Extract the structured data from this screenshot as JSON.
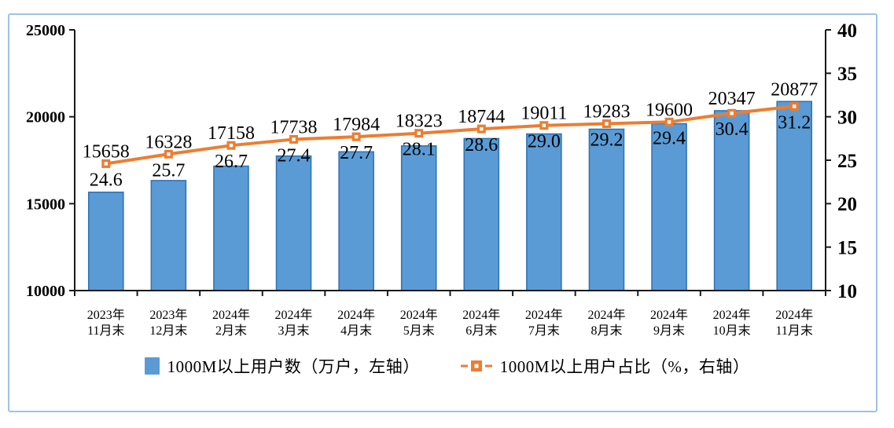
{
  "chart_data": {
    "type": "bar",
    "subtype": "bar-line-combo",
    "title": "",
    "grid": false,
    "legend_position": "bottom",
    "categories": [
      [
        "2023年",
        "11月末"
      ],
      [
        "2023年",
        "12月末"
      ],
      [
        "2024年",
        "2月末"
      ],
      [
        "2024年",
        "3月末"
      ],
      [
        "2024年",
        "4月末"
      ],
      [
        "2024年",
        "5月末"
      ],
      [
        "2024年",
        "6月末"
      ],
      [
        "2024年",
        "7月末"
      ],
      [
        "2024年",
        "8月末"
      ],
      [
        "2024年",
        "9月末"
      ],
      [
        "2024年",
        "10月末"
      ],
      [
        "2024年",
        "11月末"
      ]
    ],
    "series": [
      {
        "name": "1000M以上用户数（万户，左轴）",
        "type": "bar",
        "axis": "left",
        "values": [
          15658,
          16328,
          17158,
          17738,
          17984,
          18323,
          18744,
          19011,
          19283,
          19600,
          20347,
          20877
        ],
        "labels": [
          "15658",
          "16328",
          "17158",
          "17738",
          "17984",
          "18323",
          "18744",
          "19011",
          "19283",
          "19600",
          "20347",
          "20877"
        ]
      },
      {
        "name": "1000M以上用户占比（%，右轴）",
        "type": "line",
        "axis": "right",
        "values": [
          24.6,
          25.7,
          26.7,
          27.4,
          27.7,
          28.1,
          28.6,
          29.0,
          29.2,
          29.4,
          30.4,
          31.2
        ],
        "labels": [
          "24.6",
          "25.7",
          "26.7",
          "27.4",
          "27.7",
          "28.1",
          "28.6",
          "29.0",
          "29.2",
          "29.4",
          "30.4",
          "31.2"
        ]
      }
    ],
    "left_axis": {
      "min": 10000,
      "max": 25000,
      "step": 5000,
      "ticks": [
        "25000",
        "20000",
        "15000",
        "10000"
      ]
    },
    "right_axis": {
      "min": 10,
      "max": 40,
      "step": 5,
      "ticks": [
        "40",
        "35",
        "30",
        "25",
        "20",
        "15",
        "10"
      ]
    }
  },
  "colors": {
    "bar_fill": "#5B9BD5",
    "bar_border": "#2E75B6",
    "line": "#ED7D31",
    "marker_inner": "#FFFFFF",
    "axis": "#1a1a1a",
    "text": "#000000",
    "frame_border": "#9DC3E6",
    "background": "#FFFFFF"
  }
}
